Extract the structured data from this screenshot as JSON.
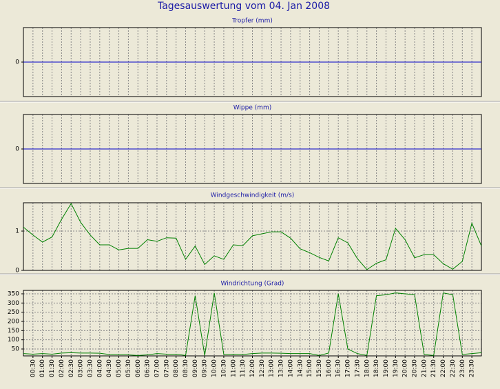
{
  "title": "Tagesauswertung vom 04. Jan 2008",
  "chart_data": [
    {
      "type": "line",
      "title": "Tropfer (mm)",
      "color": "#0000c8",
      "ylim": [
        -1,
        1
      ],
      "yticks": [
        0
      ],
      "grid": true,
      "values": [
        0,
        0,
        0,
        0,
        0,
        0,
        0,
        0,
        0,
        0,
        0,
        0,
        0,
        0,
        0,
        0,
        0,
        0,
        0,
        0,
        0,
        0,
        0,
        0,
        0,
        0,
        0,
        0,
        0,
        0,
        0,
        0,
        0,
        0,
        0,
        0,
        0,
        0,
        0,
        0,
        0,
        0,
        0,
        0,
        0,
        0,
        0,
        0,
        0
      ]
    },
    {
      "type": "line",
      "title": "Wippe (mm)",
      "color": "#0000c8",
      "ylim": [
        -1,
        1
      ],
      "yticks": [
        0
      ],
      "grid": true,
      "values": [
        0,
        0,
        0,
        0,
        0,
        0,
        0,
        0,
        0,
        0,
        0,
        0,
        0,
        0,
        0,
        0,
        0,
        0,
        0,
        0,
        0,
        0,
        0,
        0,
        0,
        0,
        0,
        0,
        0,
        0,
        0,
        0,
        0,
        0,
        0,
        0,
        0,
        0,
        0,
        0,
        0,
        0,
        0,
        0,
        0,
        0,
        0,
        0,
        0
      ]
    },
    {
      "type": "line",
      "title": "Windgeschwindigkeit (m/s)",
      "color": "#008000",
      "ylim": [
        0,
        1.72
      ],
      "yticks": [
        0,
        1
      ],
      "grid": true,
      "values": [
        1.1,
        0.9,
        0.72,
        0.85,
        1.3,
        1.7,
        1.22,
        0.9,
        0.65,
        0.65,
        0.52,
        0.56,
        0.56,
        0.78,
        0.74,
        0.83,
        0.82,
        0.28,
        0.62,
        0.15,
        0.37,
        0.28,
        0.65,
        0.63,
        0.88,
        0.93,
        0.98,
        0.98,
        0.82,
        0.55,
        0.45,
        0.33,
        0.24,
        0.83,
        0.7,
        0.3,
        0.02,
        0.18,
        0.27,
        1.07,
        0.78,
        0.32,
        0.4,
        0.4,
        0.17,
        0.03,
        0.23,
        1.2,
        0.62
      ]
    },
    {
      "type": "line",
      "title": "Windrichtung (Grad)",
      "color": "#008000",
      "ylim": [
        12.5,
        368.75
      ],
      "yticks": [
        50,
        100,
        150,
        200,
        250,
        300,
        350
      ],
      "grid": true,
      "values": [
        25,
        22,
        25,
        22,
        28,
        30,
        28,
        28,
        27,
        20,
        18,
        18,
        15,
        18,
        25,
        22,
        22,
        15,
        340,
        15,
        355,
        20,
        22,
        20,
        25,
        28,
        28,
        27,
        25,
        25,
        25,
        15,
        28,
        350,
        50,
        25,
        15,
        340,
        345,
        355,
        350,
        345,
        20,
        15,
        355,
        345,
        20,
        25,
        30
      ],
      "categories": [
        null,
        "00:30",
        "01:00",
        "01:30",
        "02:00",
        "02:30",
        "03:00",
        "03:30",
        "04:00",
        "04:30",
        "05:00",
        "05:30",
        "06:00",
        "06:30",
        "07:00",
        "07:30",
        "08:00",
        "08:30",
        "09:00",
        "09:30",
        "10:00",
        "10:30",
        "11:00",
        "11:30",
        "12:00",
        "12:30",
        "13:00",
        "13:30",
        "14:00",
        "14:30",
        "15:00",
        "15:30",
        "16:00",
        "16:30",
        "17:00",
        "17:30",
        "18:00",
        "18:30",
        "19:00",
        "19:30",
        "20:00",
        "20:30",
        "21:00",
        "21:30",
        "22:00",
        "22:30",
        "23:00",
        "23:30",
        null
      ]
    }
  ]
}
